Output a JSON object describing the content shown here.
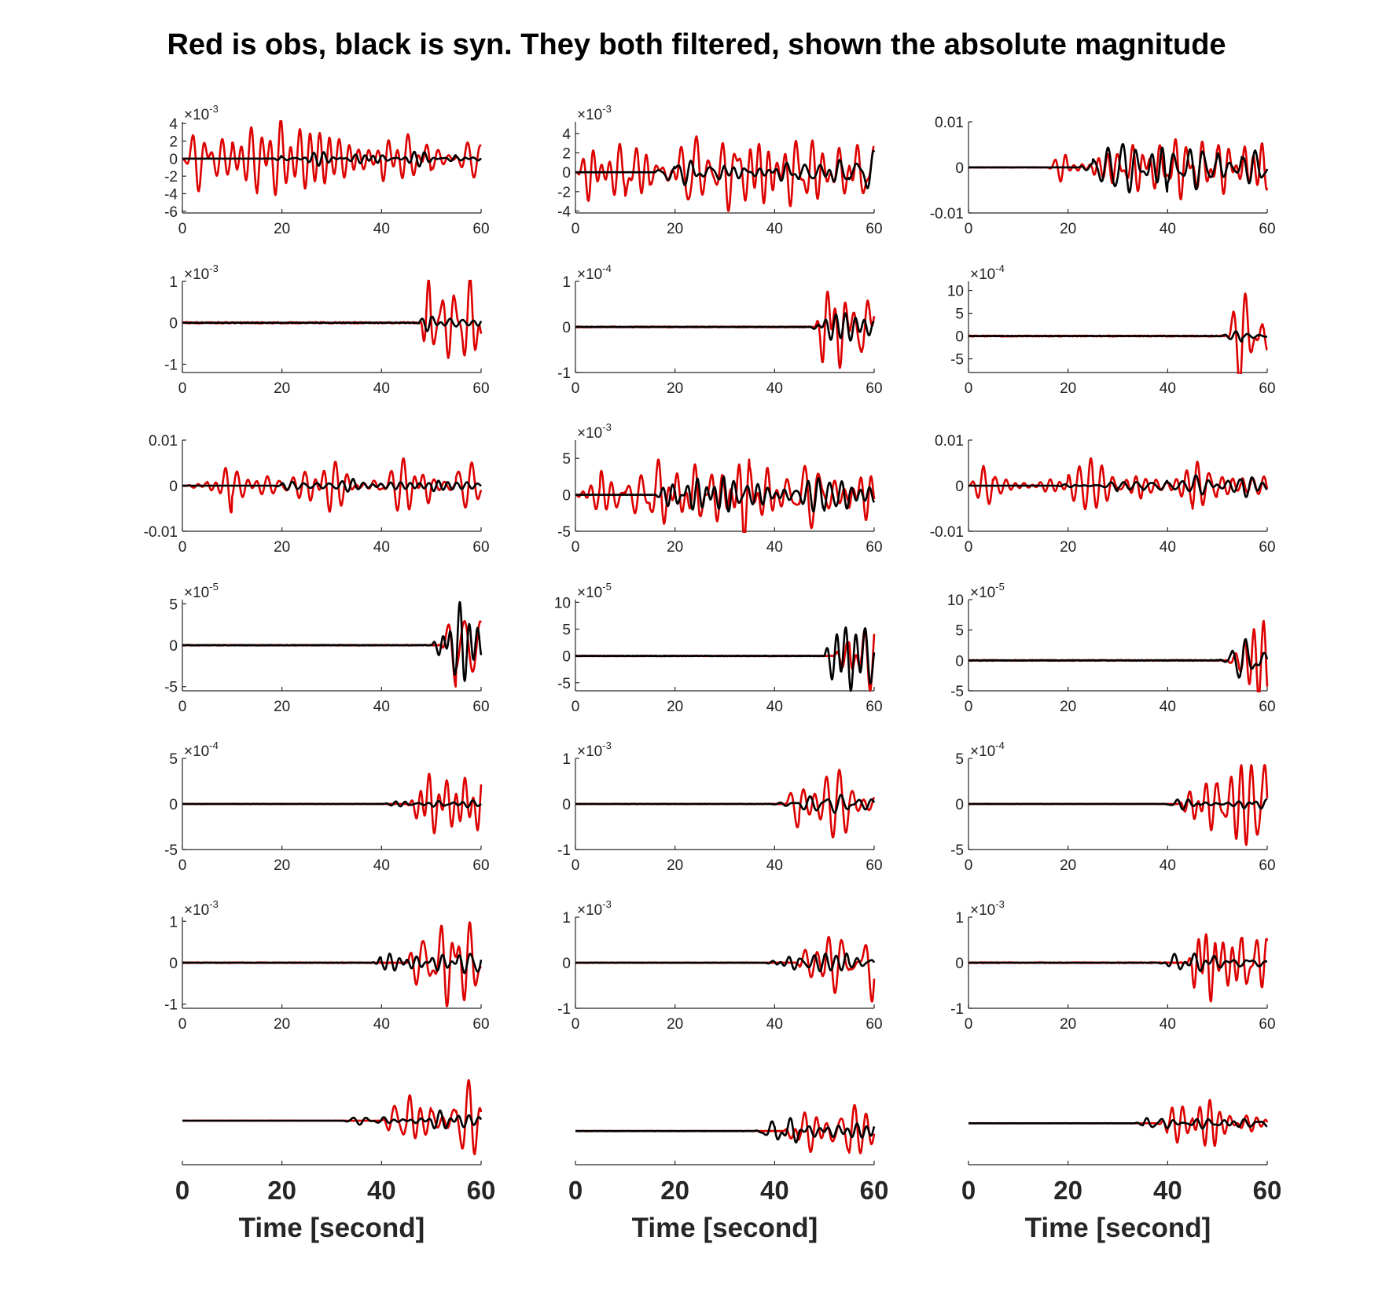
{
  "title": "Red is obs, black is syn. They both filtered, shown the absolute magnitude",
  "chart_data": {
    "type": "line",
    "grid": false,
    "colors": {
      "obs": "#dd0000",
      "syn": "#000000"
    },
    "rows": 7,
    "cols": 3,
    "x_range": [
      0,
      60
    ],
    "x_ticks": [
      "0",
      "20",
      "40",
      "60"
    ],
    "xlabel": "Time [second]",
    "panels": [
      {
        "id": "r1c1",
        "exponent": "-3",
        "ylim": [
          -6.2,
          4.2
        ],
        "yticks": [
          {
            "v": 4,
            "label": "4"
          },
          {
            "v": 2,
            "label": "2"
          },
          {
            "v": 0,
            "label": "0"
          },
          {
            "v": -2,
            "label": "-2"
          },
          {
            "v": -4,
            "label": "-4"
          },
          {
            "v": -6,
            "label": "-6"
          }
        ],
        "obs_amp": 4.5,
        "obs_onset": 0,
        "syn_amp": 0.9,
        "syn_onset": 18,
        "seed": 11
      },
      {
        "id": "r1c2",
        "exponent": "-3",
        "ylim": [
          -4.2,
          5.2
        ],
        "yticks": [
          {
            "v": 4,
            "label": "4"
          },
          {
            "v": 2,
            "label": "2"
          },
          {
            "v": 0,
            "label": "0"
          },
          {
            "v": -2,
            "label": "-2"
          },
          {
            "v": -4,
            "label": "-4"
          }
        ],
        "obs_amp": 4.0,
        "obs_onset": 0,
        "syn_amp": 2.2,
        "syn_onset": 16,
        "seed": 23
      },
      {
        "id": "r1c3",
        "exponent": "",
        "ylim": [
          -0.01,
          0.01
        ],
        "yticks": [
          {
            "v": 0.01,
            "label": "0.01"
          },
          {
            "v": 0,
            "label": "0"
          },
          {
            "v": -0.01,
            "label": "-0.01"
          }
        ],
        "obs_amp": 0.007,
        "obs_onset": 16,
        "syn_amp": 0.0055,
        "syn_onset": 22,
        "seed": 37
      },
      {
        "id": "r2c1",
        "exponent": "-3",
        "ylim": [
          -1.2,
          1.0
        ],
        "yticks": [
          {
            "v": 1,
            "label": "1"
          },
          {
            "v": 0,
            "label": "0"
          },
          {
            "v": -1,
            "label": "-1"
          }
        ],
        "obs_amp": 1.1,
        "obs_onset": 48,
        "syn_amp": 0.2,
        "syn_onset": 47,
        "seed": 41
      },
      {
        "id": "r2c2",
        "exponent": "-4",
        "ylim": [
          -1.0,
          1.0
        ],
        "yticks": [
          {
            "v": 1,
            "label": "1"
          },
          {
            "v": 0,
            "label": "0"
          },
          {
            "v": -1,
            "label": "-1"
          }
        ],
        "obs_amp": 0.9,
        "obs_onset": 48,
        "syn_amp": 0.3,
        "syn_onset": 47,
        "seed": 53
      },
      {
        "id": "r2c3",
        "exponent": "-4",
        "ylim": [
          -8,
          12
        ],
        "yticks": [
          {
            "v": 10,
            "label": "10"
          },
          {
            "v": 5,
            "label": "5"
          },
          {
            "v": 0,
            "label": "0"
          },
          {
            "v": -5,
            "label": "-5"
          }
        ],
        "obs_amp": 10.5,
        "obs_onset": 52,
        "syn_amp": 1.2,
        "syn_onset": 50,
        "seed": 67
      },
      {
        "id": "r3c1",
        "exponent": "",
        "ylim": [
          -0.01,
          0.01
        ],
        "yticks": [
          {
            "v": 0.01,
            "label": "0.01"
          },
          {
            "v": 0,
            "label": "0"
          },
          {
            "v": -0.01,
            "label": "-0.01"
          }
        ],
        "obs_amp": 0.006,
        "obs_onset": 0,
        "syn_amp": 0.0015,
        "syn_onset": 18,
        "seed": 71
      },
      {
        "id": "r3c2",
        "exponent": "-3",
        "ylim": [
          -5,
          7.5
        ],
        "yticks": [
          {
            "v": 5,
            "label": "5"
          },
          {
            "v": 0,
            "label": "0"
          },
          {
            "v": -5,
            "label": "-5"
          }
        ],
        "obs_amp": 6.0,
        "obs_onset": 0,
        "syn_amp": 2.5,
        "syn_onset": 16,
        "seed": 83
      },
      {
        "id": "r3c3",
        "exponent": "",
        "ylim": [
          -0.01,
          0.01
        ],
        "yticks": [
          {
            "v": 0.01,
            "label": "0.01"
          },
          {
            "v": 0,
            "label": "0"
          },
          {
            "v": -0.01,
            "label": "-0.01"
          }
        ],
        "obs_amp": 0.006,
        "obs_onset": 0,
        "syn_amp": 0.0025,
        "syn_onset": 18,
        "seed": 97
      },
      {
        "id": "r4c1",
        "exponent": "-5",
        "ylim": [
          -5.5,
          5.5
        ],
        "yticks": [
          {
            "v": 5,
            "label": "5"
          },
          {
            "v": 0,
            "label": "0"
          },
          {
            "v": -5,
            "label": "-5"
          }
        ],
        "obs_amp": 5.0,
        "obs_onset": 52,
        "syn_amp": 5.2,
        "syn_onset": 50,
        "seed": 101
      },
      {
        "id": "r4c2",
        "exponent": "-5",
        "ylim": [
          -6.5,
          10.5
        ],
        "yticks": [
          {
            "v": 10,
            "label": "10"
          },
          {
            "v": 5,
            "label": "5"
          },
          {
            "v": 0,
            "label": "0"
          },
          {
            "v": -5,
            "label": "-5"
          }
        ],
        "obs_amp": 6.5,
        "obs_onset": 52,
        "syn_amp": 6.5,
        "syn_onset": 50,
        "seed": 113
      },
      {
        "id": "r4c3",
        "exponent": "-5",
        "ylim": [
          -5,
          10
        ],
        "yticks": [
          {
            "v": 10,
            "label": "10"
          },
          {
            "v": 5,
            "label": "5"
          },
          {
            "v": 0,
            "label": "0"
          },
          {
            "v": -5,
            "label": "-5"
          }
        ],
        "obs_amp": 6.5,
        "obs_onset": 52,
        "syn_amp": 3.5,
        "syn_onset": 50,
        "seed": 127
      },
      {
        "id": "r5c1",
        "exponent": "-4",
        "ylim": [
          -5,
          5
        ],
        "yticks": [
          {
            "v": 5,
            "label": "5"
          },
          {
            "v": 0,
            "label": "0"
          },
          {
            "v": -5,
            "label": "-5"
          }
        ],
        "obs_amp": 3.3,
        "obs_onset": 45,
        "syn_amp": 0.4,
        "syn_onset": 40,
        "seed": 131
      },
      {
        "id": "r5c2",
        "exponent": "-3",
        "ylim": [
          -1,
          1
        ],
        "yticks": [
          {
            "v": 1,
            "label": "1"
          },
          {
            "v": 0,
            "label": "0"
          },
          {
            "v": -1,
            "label": "-1"
          }
        ],
        "obs_amp": 0.75,
        "obs_onset": 42,
        "syn_amp": 0.2,
        "syn_onset": 39,
        "seed": 149
      },
      {
        "id": "r5c3",
        "exponent": "-4",
        "ylim": [
          -5,
          5
        ],
        "yticks": [
          {
            "v": 5,
            "label": "5"
          },
          {
            "v": 0,
            "label": "0"
          },
          {
            "v": -5,
            "label": "-5"
          }
        ],
        "obs_amp": 4.5,
        "obs_onset": 42,
        "syn_amp": 0.6,
        "syn_onset": 39,
        "seed": 157
      },
      {
        "id": "r6c1",
        "exponent": "-3",
        "ylim": [
          -1.1,
          1.1
        ],
        "yticks": [
          {
            "v": 1,
            "label": "1"
          },
          {
            "v": 0,
            "label": "0"
          },
          {
            "v": -1,
            "label": "-1"
          }
        ],
        "obs_amp": 1.05,
        "obs_onset": 45,
        "syn_amp": 0.25,
        "syn_onset": 38,
        "seed": 163
      },
      {
        "id": "r6c2",
        "exponent": "-3",
        "ylim": [
          -1,
          1
        ],
        "yticks": [
          {
            "v": 1,
            "label": "1"
          },
          {
            "v": 0,
            "label": "0"
          },
          {
            "v": -1,
            "label": "-1"
          }
        ],
        "obs_amp": 0.85,
        "obs_onset": 44,
        "syn_amp": 0.2,
        "syn_onset": 38,
        "seed": 173
      },
      {
        "id": "r6c3",
        "exponent": "-3",
        "ylim": [
          -1,
          1
        ],
        "yticks": [
          {
            "v": 1,
            "label": "1"
          },
          {
            "v": 0,
            "label": "0"
          },
          {
            "v": -1,
            "label": "-1"
          }
        ],
        "obs_amp": 0.85,
        "obs_onset": 44,
        "syn_amp": 0.2,
        "syn_onset": 38,
        "seed": 181
      },
      {
        "id": "r7c1",
        "exponent": "",
        "ylim": [
          -1.3,
          1.3
        ],
        "yticks": [],
        "obs_amp": 1.2,
        "obs_onset": 40,
        "syn_amp": 0.3,
        "syn_onset": 32,
        "seed": 191
      },
      {
        "id": "r7c2",
        "exponent": "",
        "ylim": [
          -1.3,
          2.1
        ],
        "yticks": [],
        "obs_amp": 1.0,
        "obs_onset": 42,
        "syn_amp": 0.5,
        "syn_onset": 36,
        "seed": 193
      },
      {
        "id": "r7c3",
        "exponent": "",
        "ylim": [
          -1.6,
          1.8
        ],
        "yticks": [],
        "obs_amp": 0.9,
        "obs_onset": 38,
        "syn_amp": 0.2,
        "syn_onset": 33,
        "seed": 197
      }
    ]
  }
}
